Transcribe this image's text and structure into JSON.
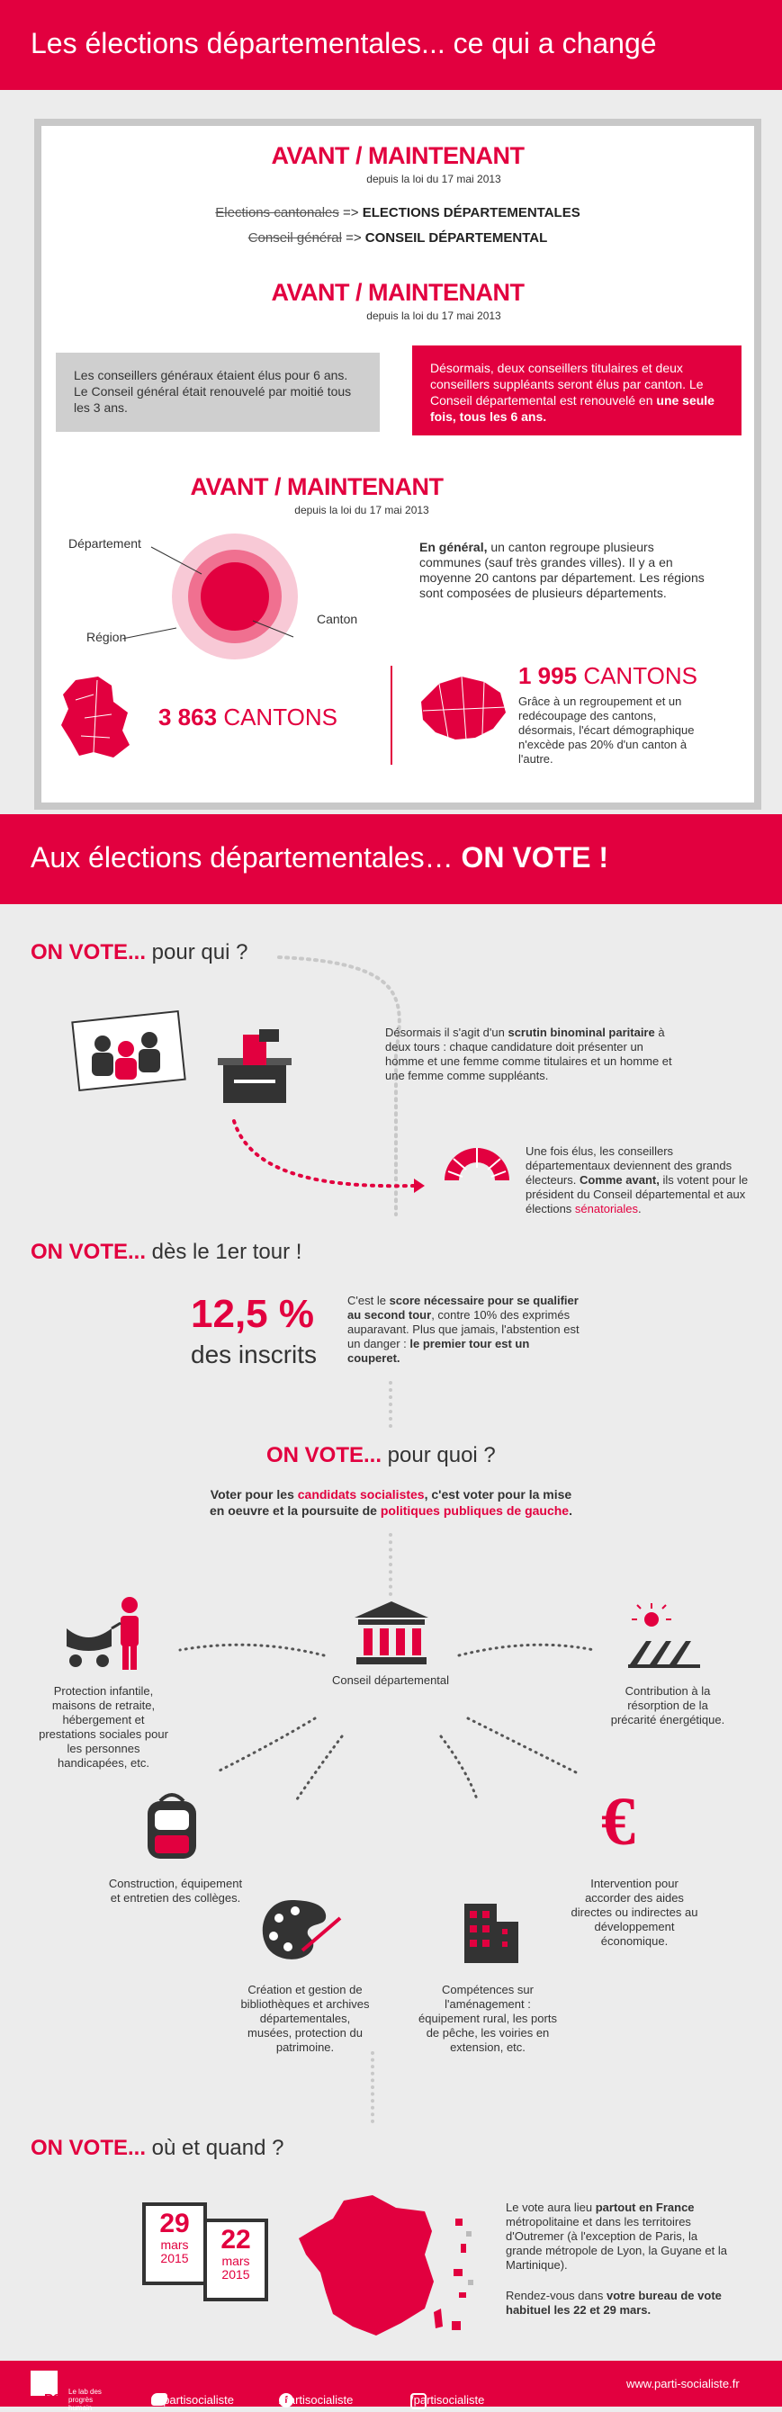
{
  "section1": {
    "title": "Les élections départementales... ce qui a changé"
  },
  "box": {
    "avant1": "AVANT / MAINTENANT",
    "depuis1": "depuis la loi du 17 mai 2013",
    "old1": "Elections cantonales",
    "arrow": "=>",
    "new1": "ELECTIONS DÉPARTEMENTALES",
    "old2": "Conseil général",
    "new2": "CONSEIL DÉPARTEMENTAL",
    "avant2": "AVANT / MAINTENANT",
    "depuis2": "depuis la loi du 17 mai 2013",
    "grey_text": "Les conseillers généraux étaient élus pour 6 ans. Le Conseil général était renouvelé par moitié tous les 3 ans.",
    "red_text_a": "Désormais, deux conseillers titulaires et deux conseillers suppléants seront élus par canton. Le Conseil départemental est renouvelé en ",
    "red_text_b": "une seule fois, tous les 6 ans.",
    "avant3": "AVANT / MAINTENANT",
    "depuis3": "depuis la loi du 17 mai 2013",
    "label_departement": "Département",
    "label_region": "Région",
    "label_canton": "Canton",
    "general_bold": "En général,",
    "general_text": " un canton regroupe plusieurs communes (sauf très grandes villes). Il y a en moyenne 20 cantons par département. Les régions sont composées de plusieurs départements.",
    "cantons_before": "3 863",
    "cantons_word": "CANTONS",
    "cantons_after": "1 995",
    "cantons_word2": "CANTONS",
    "cantons_after_text": "Grâce à un regroupement et un redécoupage des cantons, désormais, l'écart démographique n'excède pas 20% d'un canton à l'autre."
  },
  "section2": {
    "title_a": "Aux élections départementales… ",
    "title_b": "ON VOTE !"
  },
  "qui": {
    "on_vote": "ON VOTE...",
    "q": " pour qui ?",
    "text_a": "Désormais il s'agit d'un ",
    "text_b": "scrutin binominal paritaire",
    "text_c": " à deux tours : chaque candidature doit présenter un homme et une femme comme titulaires et un homme et une femme comme suppléants.",
    "elus_a": "Une fois élus, les conseillers départementaux deviennent des grands électeurs. ",
    "elus_b": "Comme avant,",
    "elus_c": " ils votent pour le président du Conseil départemental et aux élections ",
    "elus_d": "sénatoriales",
    "elus_e": "."
  },
  "tour": {
    "on_vote": "ON VOTE...",
    "q": " dès le 1er tour !",
    "percent": "12,5 %",
    "inscrits": "des inscrits",
    "text_a": "C'est le ",
    "text_b": "score nécessaire pour se qualifier au second tour",
    "text_c": ", contre 10% des exprimés auparavant. Plus que jamais, l'abstention est un danger : ",
    "text_d": "le premier tour est un couperet."
  },
  "quoi": {
    "on_vote": "ON VOTE...",
    "q": " pour quoi ?",
    "line1_a": "Voter pour les ",
    "line1_b": "candidats socialistes",
    "line1_c": ", c'est voter pour la mise",
    "line2_a": "en oeuvre et la poursuite de ",
    "line2_b": "politiques publiques de gauche",
    "line2_c": ".",
    "center": "Conseil départemental",
    "c1": "Protection infantile, maisons de retraite, hébergement et prestations sociales pour les personnes handicapées, etc.",
    "c2": "Contribution à la résorption de la précarité énergétique.",
    "c3": "Construction, équipement et entretien des collèges.",
    "c4": "Intervention pour accorder des aides directes ou indirectes au développement économique.",
    "c5": "Création et gestion de bibliothèques et archives départementales, musées, protection du patrimoine.",
    "c6": "Compétences sur l'aménagement : équipement rural, les ports de pêche, les voiries en extension, etc.",
    "euro": "€"
  },
  "ou": {
    "on_vote": "ON VOTE...",
    "q": " où et quand ?",
    "d1_num": "29",
    "d1_month": "mars",
    "d1_year": "2015",
    "d2_num": "22",
    "d2_month": "mars",
    "d2_year": "2015",
    "text1_a": "Le vote aura lieu ",
    "text1_b": "partout en France",
    "text1_c": " métropolitaine et dans les territoires d'Outremer (à l'exception de Paris, la grande métropole de Lyon, la Guyane et la Martinique).",
    "text2_a": "Rendez-vous dans ",
    "text2_b": "votre bureau de vote habituel les 22 et 29 mars."
  },
  "footer": {
    "ps": "PS",
    "lab": "Le lab des progrès humain",
    "twitter": "@partisocialiste",
    "facebook": "/partisocialiste",
    "instagram": "/partisocialiste",
    "site": "www.parti-socialiste.fr"
  },
  "colors": {
    "accent": "#e2003f",
    "grey": "#cfcfcf",
    "bg": "#ececec"
  }
}
